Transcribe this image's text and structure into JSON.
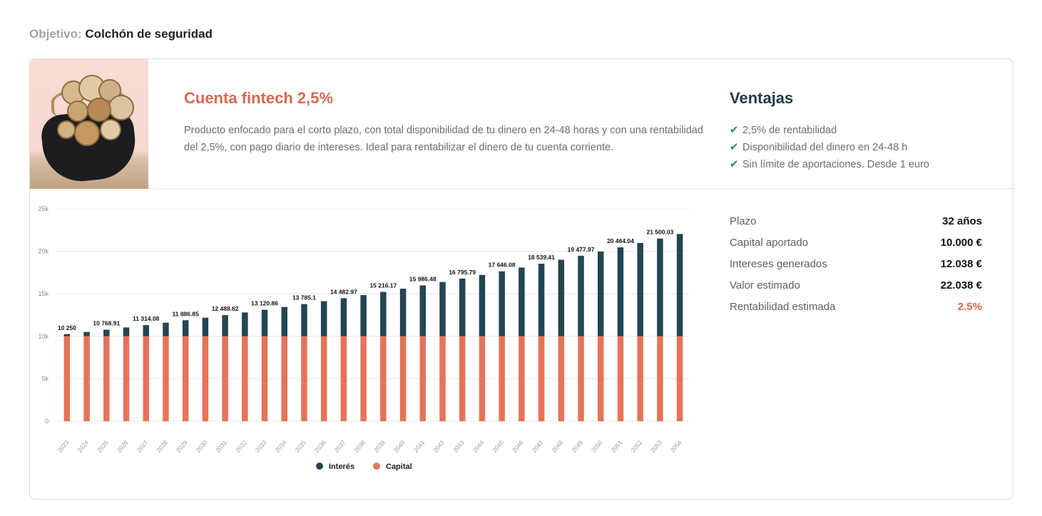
{
  "objective": {
    "label": "Objetivo:",
    "value": "Colchón de seguridad"
  },
  "product": {
    "title": "Cuenta fintech 2,5%",
    "description": "Producto enfocado para el corto plazo, con total disponibilidad de tu dinero en 24-48 horas y con una rentabilidad del 2,5%, con pago diario de intereses. Ideal para rentabilizar el dinero de tu cuenta corriente."
  },
  "advantages": {
    "title": "Ventajas",
    "items": [
      "2,5% de rentabilidad",
      "Disponibilidad del dinero en 24-48 h",
      "Sin límite de aportaciones. Desde 1 euro"
    ]
  },
  "stats": [
    {
      "label": "Plazo",
      "value": "32 años"
    },
    {
      "label": "Capital aportado",
      "value": "10.000 €"
    },
    {
      "label": "Intereses generados",
      "value": "12.038 €"
    },
    {
      "label": "Valor estimado",
      "value": "22.038 €"
    },
    {
      "label": "Rentabilidad estimada",
      "value": "2.5%"
    }
  ],
  "colors": {
    "interest": "#244551",
    "capital": "#e6735a",
    "accent": "#d9694e",
    "check": "#2e8b5a"
  },
  "chart_data": {
    "type": "bar",
    "stacked": true,
    "categories": [
      "2023",
      "2024",
      "2025",
      "2026",
      "2027",
      "2028",
      "2029",
      "2030",
      "2031",
      "2032",
      "2033",
      "2034",
      "2035",
      "2036",
      "2037",
      "2038",
      "2039",
      "2040",
      "2041",
      "2042",
      "2043",
      "2044",
      "2045",
      "2046",
      "2047",
      "2048",
      "2049",
      "2050",
      "2051",
      "2052",
      "2053",
      "2054"
    ],
    "series": [
      {
        "name": "Capital",
        "values": [
          10000,
          10000,
          10000,
          10000,
          10000,
          10000,
          10000,
          10000,
          10000,
          10000,
          10000,
          10000,
          10000,
          10000,
          10000,
          10000,
          10000,
          10000,
          10000,
          10000,
          10000,
          10000,
          10000,
          10000,
          10000,
          10000,
          10000,
          10000,
          10000,
          10000,
          10000,
          10000
        ]
      },
      {
        "name": "Interés",
        "values": [
          250,
          506,
          769,
          1038,
          1314,
          1597,
          1887,
          2184,
          2489,
          2801,
          3121,
          3449,
          3785,
          4130,
          4483,
          4845,
          5216,
          5597,
          5986,
          6386,
          6796,
          7216,
          7646,
          8087,
          8539,
          9003,
          9478,
          9965,
          10464,
          10976,
          11500,
          12038
        ]
      }
    ],
    "labels": [
      {
        "index": 0,
        "text": "10 250"
      },
      {
        "index": 2,
        "text": "10 768.91"
      },
      {
        "index": 4,
        "text": "11 314.08"
      },
      {
        "index": 6,
        "text": "11 886.85"
      },
      {
        "index": 8,
        "text": "12 488.62"
      },
      {
        "index": 10,
        "text": "13 120.86"
      },
      {
        "index": 12,
        "text": "13 785.1"
      },
      {
        "index": 14,
        "text": "14 482.97"
      },
      {
        "index": 16,
        "text": "15 216.17"
      },
      {
        "index": 18,
        "text": "15 986.48"
      },
      {
        "index": 20,
        "text": "16 795.79"
      },
      {
        "index": 22,
        "text": "17 646.08"
      },
      {
        "index": 24,
        "text": "18 539.41"
      },
      {
        "index": 26,
        "text": "19 477.97"
      },
      {
        "index": 28,
        "text": "20 464.04"
      },
      {
        "index": 30,
        "text": "21 500.03"
      }
    ],
    "yticks": [
      0,
      5000,
      10000,
      15000,
      20000,
      25000
    ],
    "ytick_labels": [
      "0",
      "5k",
      "10k",
      "15k",
      "20k",
      "25k"
    ],
    "ylim": [
      0,
      25000
    ],
    "legend": [
      "Interés",
      "Capital"
    ],
    "legend_position": "bottom",
    "title": "",
    "xlabel": "",
    "ylabel": ""
  }
}
